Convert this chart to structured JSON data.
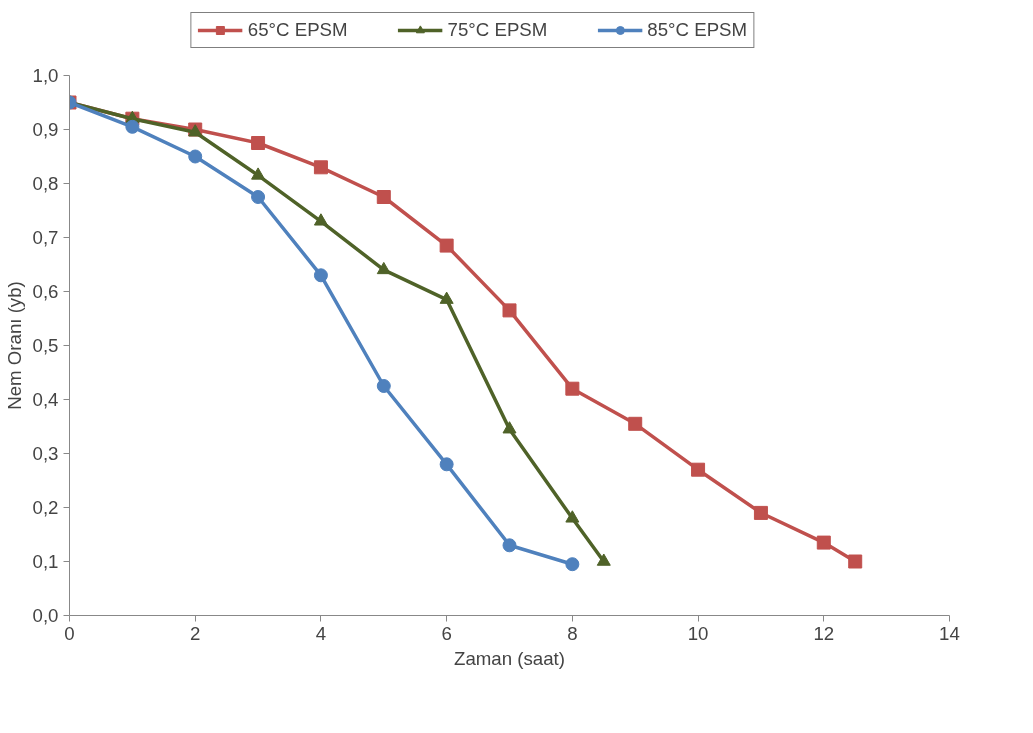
{
  "chart_data": {
    "type": "line",
    "xlabel": "Zaman (saat)",
    "ylabel": "Nem Oranı (yb)",
    "xlim": [
      0,
      14
    ],
    "xticks": [
      0,
      2,
      4,
      6,
      8,
      10,
      12,
      14
    ],
    "ylim": [
      0,
      1.0
    ],
    "yticks": [
      {
        "value": 0,
        "label": "0,0"
      },
      {
        "value": 0.1,
        "label": "0,1"
      },
      {
        "value": 0.2,
        "label": "0,2"
      },
      {
        "value": 0.3,
        "label": "0,3"
      },
      {
        "value": 0.4,
        "label": "0,4"
      },
      {
        "value": 0.5,
        "label": "0,5"
      },
      {
        "value": 0.6,
        "label": "0,6"
      },
      {
        "value": 0.7,
        "label": "0,7"
      },
      {
        "value": 0.8,
        "label": "0,8"
      },
      {
        "value": 0.9,
        "label": "0,9"
      },
      {
        "value": 1.0,
        "label": "1,0"
      }
    ],
    "grid": false,
    "legend": "top",
    "line_style": "solid",
    "series": [
      {
        "name": "65°C EPSM",
        "color": "#c0504d",
        "marker": "square",
        "x": [
          0,
          1,
          2,
          3,
          4,
          5,
          6,
          7,
          8,
          9,
          10,
          11,
          12,
          12.5
        ],
        "values": [
          0.95,
          0.92,
          0.9,
          0.875,
          0.83,
          0.775,
          0.685,
          0.565,
          0.42,
          0.355,
          0.27,
          0.19,
          0.135,
          0.1
        ]
      },
      {
        "name": "75°C EPSM",
        "color": "#4f6228",
        "marker": "triangle",
        "x": [
          0,
          1,
          2,
          3,
          4,
          5,
          6,
          7,
          8,
          8.5
        ],
        "values": [
          0.95,
          0.92,
          0.895,
          0.815,
          0.73,
          0.64,
          0.585,
          0.345,
          0.18,
          0.1
        ]
      },
      {
        "name": "85°C EPSM",
        "color": "#4f81bd",
        "marker": "circle",
        "x": [
          0,
          1,
          2,
          3,
          4,
          5,
          6,
          7,
          8
        ],
        "values": [
          0.95,
          0.905,
          0.85,
          0.775,
          0.63,
          0.425,
          0.28,
          0.13,
          0.095
        ]
      }
    ]
  }
}
